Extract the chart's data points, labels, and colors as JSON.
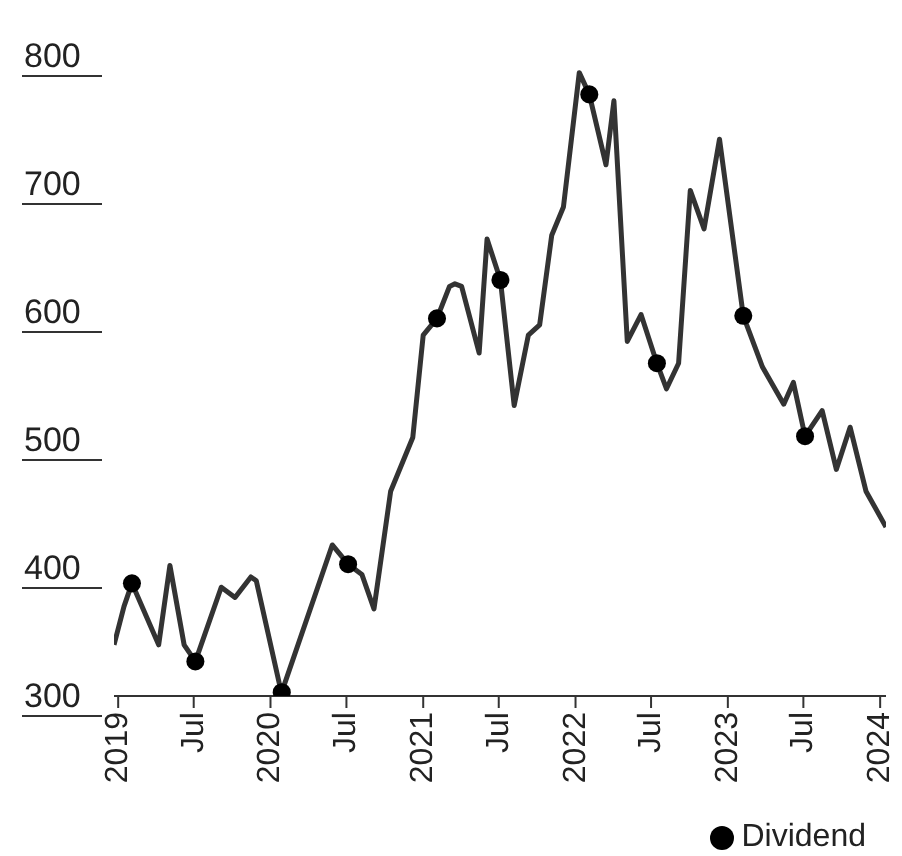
{
  "chart_data": {
    "type": "line",
    "legend": "bottom right",
    "grid": false,
    "xlim": [
      "2018-12-22",
      "2024-01-15"
    ],
    "xticks": [
      "2019",
      {
        "value": "2019-07",
        "label": "Jul"
      },
      "2020",
      {
        "value": "2020-07",
        "label": "Jul"
      },
      "2021",
      {
        "value": "2021-07",
        "label": "Jul"
      },
      "2022",
      {
        "value": "2022-07",
        "label": "Jul"
      },
      "2023",
      {
        "value": "2023-07",
        "label": "Jul"
      },
      "2024"
    ],
    "ylim": [
      300,
      800
    ],
    "yticks": [
      300,
      400,
      500,
      600,
      700,
      800
    ],
    "series": [
      {
        "color": "#333333",
        "x": [
          "2018-12-22",
          "2019-01-15",
          "2019-02-03",
          "2019-04-08",
          "2019-05-05",
          "2019-06-08",
          "2019-07-05",
          "2019-09-05",
          "2019-10-08",
          "2019-11-15",
          "2019-11-28",
          "2020-01-24",
          "2020-01-28",
          "2020-05-28",
          "2020-07-05",
          "2020-08-07",
          "2020-09-05",
          "2020-10-15",
          "2020-12-07",
          "2021-01-01",
          "2021-02-03",
          "2021-03-05",
          "2021-03-18",
          "2021-04-03",
          "2021-05-15",
          "2021-06-03",
          "2021-07-05",
          "2021-08-07",
          "2021-09-10",
          "2021-10-07",
          "2021-11-05",
          "2021-12-03",
          "2022-01-10",
          "2022-02-03",
          "2022-03-15",
          "2022-04-03",
          "2022-05-05",
          "2022-06-07",
          "2022-07-15",
          "2022-08-07",
          "2022-09-05",
          "2022-10-03",
          "2022-11-05",
          "2022-12-12",
          "2023-02-07",
          "2023-03-25",
          "2023-05-15",
          "2023-06-07",
          "2023-07-05",
          "2023-08-15",
          "2023-09-18",
          "2023-10-21",
          "2023-11-28",
          "2024-01-15"
        ],
        "values": [
          340,
          370,
          388,
          340,
          402,
          340,
          327,
          385,
          377,
          393,
          390,
          307,
          303,
          418,
          403,
          395,
          368,
          460,
          502,
          582,
          595,
          620,
          622,
          620,
          568,
          657,
          625,
          527,
          582,
          590,
          660,
          682,
          787,
          770,
          715,
          765,
          577,
          598,
          560,
          540,
          560,
          695,
          665,
          735,
          597,
          557,
          528,
          545,
          503,
          523,
          477,
          510,
          460,
          432
        ]
      },
      {
        "type": "scatter",
        "name": "Dividend",
        "color": "#000000",
        "x": [
          "2019-02-03",
          "2019-07-05",
          "2020-01-28",
          "2020-07-05",
          "2021-02-03",
          "2021-07-05",
          "2022-02-03",
          "2022-07-15",
          "2023-02-07",
          "2023-07-05"
        ],
        "values": [
          388,
          327,
          303,
          403,
          595,
          625,
          770,
          560,
          597,
          503
        ]
      }
    ]
  }
}
